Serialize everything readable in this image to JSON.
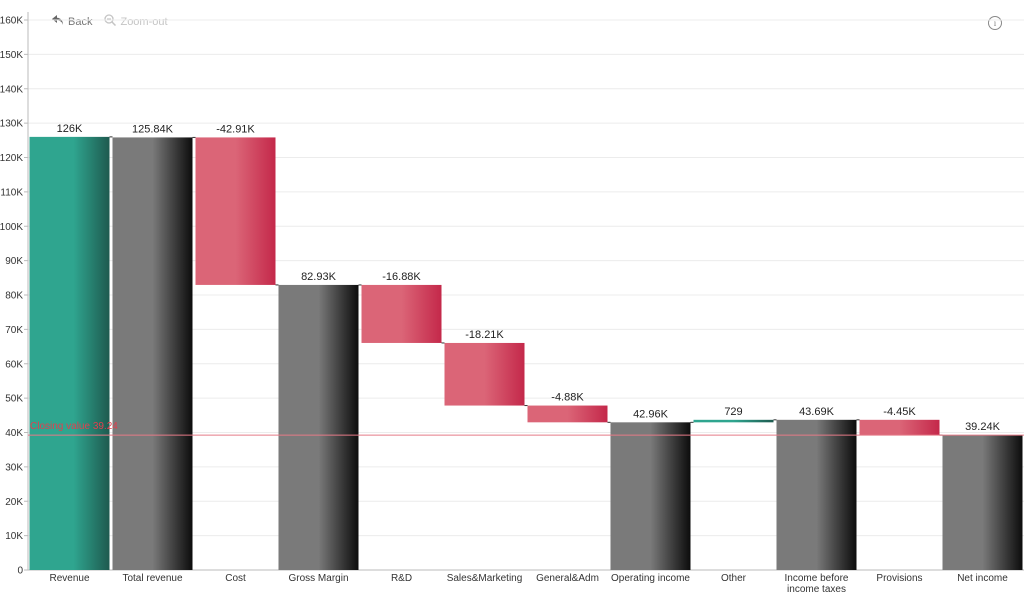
{
  "toolbar": {
    "back_label": "Back",
    "zoom_out_label": "Zoom-out"
  },
  "info_icon": "i",
  "chart_data": {
    "type": "bar",
    "subtype": "waterfall",
    "ylim": [
      0,
      160000
    ],
    "y_ticks": [
      "0",
      "10K",
      "20K",
      "30K",
      "40K",
      "50K",
      "60K",
      "70K",
      "80K",
      "90K",
      "100K",
      "110K",
      "120K",
      "130K",
      "140K",
      "150K",
      "160K"
    ],
    "y_tick_values": [
      0,
      10000,
      20000,
      30000,
      40000,
      50000,
      60000,
      70000,
      80000,
      90000,
      100000,
      110000,
      120000,
      130000,
      140000,
      150000,
      160000
    ],
    "grid": true,
    "colors": {
      "start": "#2fa58f",
      "total": "#7a7a7a",
      "decrease": "#d9566a",
      "increase": "#2fa58f",
      "closing_line": "#e57a87"
    },
    "bars": [
      {
        "category": "Revenue",
        "kind": "start",
        "base": 0,
        "top": 126000,
        "label": "126K"
      },
      {
        "category": "Total revenue",
        "kind": "total",
        "base": 0,
        "top": 125840,
        "label": "125.84K"
      },
      {
        "category": "Cost",
        "kind": "decrease",
        "base": 82930,
        "top": 125840,
        "label": "-42.91K"
      },
      {
        "category": "Gross Margin",
        "kind": "total",
        "base": 0,
        "top": 82930,
        "label": "82.93K"
      },
      {
        "category": "R&D",
        "kind": "decrease",
        "base": 66050,
        "top": 82930,
        "label": "-16.88K"
      },
      {
        "category": "Sales&Marketing",
        "kind": "decrease",
        "base": 47840,
        "top": 66050,
        "label": "-18.21K"
      },
      {
        "category": "General&Adm",
        "kind": "decrease",
        "base": 42960,
        "top": 47840,
        "label": "-4.88K"
      },
      {
        "category": "Operating income",
        "kind": "total",
        "base": 0,
        "top": 42960,
        "label": "42.96K"
      },
      {
        "category": "Other",
        "kind": "increase",
        "base": 42960,
        "top": 43689,
        "label": "729"
      },
      {
        "category": "Income before income taxes",
        "kind": "total",
        "base": 0,
        "top": 43690,
        "label": "43.69K"
      },
      {
        "category": "Provisions",
        "kind": "decrease",
        "base": 39240,
        "top": 43690,
        "label": "-4.45K"
      },
      {
        "category": "Net income",
        "kind": "total",
        "base": 0,
        "top": 39240,
        "label": "39.24K"
      }
    ],
    "closing_value": 39240,
    "closing_label": "Closing value 39.24"
  }
}
